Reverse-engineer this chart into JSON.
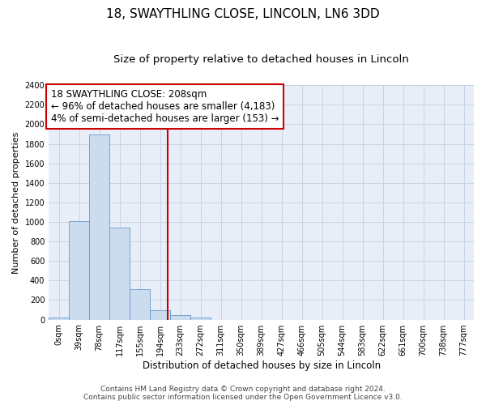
{
  "title": "18, SWAYTHLING CLOSE, LINCOLN, LN6 3DD",
  "subtitle": "Size of property relative to detached houses in Lincoln",
  "xlabel": "Distribution of detached houses by size in Lincoln",
  "ylabel": "Number of detached properties",
  "categories": [
    "0sqm",
    "39sqm",
    "78sqm",
    "117sqm",
    "155sqm",
    "194sqm",
    "233sqm",
    "272sqm",
    "311sqm",
    "350sqm",
    "389sqm",
    "427sqm",
    "466sqm",
    "505sqm",
    "544sqm",
    "583sqm",
    "622sqm",
    "661sqm",
    "700sqm",
    "738sqm",
    "777sqm"
  ],
  "values": [
    20,
    1010,
    1900,
    940,
    310,
    100,
    45,
    25,
    0,
    0,
    0,
    0,
    0,
    0,
    0,
    0,
    0,
    0,
    0,
    0,
    0
  ],
  "bar_color": "#ccdcef",
  "bar_edge_color": "#6699cc",
  "grid_color": "#c8d4e4",
  "background_color": "#e8eef8",
  "vline_x_index": 5.359,
  "vline_color": "#cc0000",
  "annotation_line1": "18 SWAYTHLING CLOSE: 208sqm",
  "annotation_line2": "← 96% of detached houses are smaller (4,183)",
  "annotation_line3": "4% of semi-detached houses are larger (153) →",
  "ylim": [
    0,
    2400
  ],
  "yticks": [
    0,
    200,
    400,
    600,
    800,
    1000,
    1200,
    1400,
    1600,
    1800,
    2000,
    2200,
    2400
  ],
  "footer_line1": "Contains HM Land Registry data © Crown copyright and database right 2024.",
  "footer_line2": "Contains public sector information licensed under the Open Government Licence v3.0.",
  "title_fontsize": 11,
  "subtitle_fontsize": 9.5,
  "annotation_fontsize": 8.5,
  "ylabel_fontsize": 8,
  "xlabel_fontsize": 8.5,
  "tick_fontsize": 7,
  "footer_fontsize": 6.5
}
